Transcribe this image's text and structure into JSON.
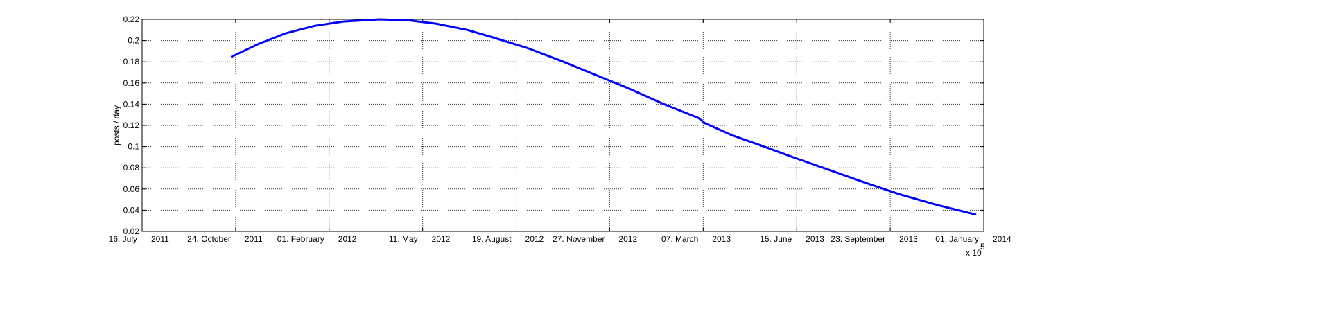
{
  "chart_data": {
    "type": "line",
    "title": "",
    "xlabel": "",
    "ylabel": "posts / day",
    "x_exponent_label": "x 10",
    "x_exponent_power": "5",
    "grid": true,
    "line_color": "#0000ff",
    "ylim": [
      0.02,
      0.22
    ],
    "yticks": [
      0.02,
      0.04,
      0.06,
      0.08,
      0.1,
      0.12,
      0.14,
      0.16,
      0.18,
      0.2,
      0.22
    ],
    "ytick_labels": [
      "0.02",
      "0.04",
      "0.06",
      "0.08",
      "0.1",
      "0.12",
      "0.14",
      "0.16",
      "0.18",
      "0.2",
      "0.22"
    ],
    "xlim": [
      "2011-07-16",
      "2014-01-01"
    ],
    "xticks": [
      "2011-07-16",
      "2011-10-24",
      "2012-02-01",
      "2012-05-11",
      "2012-08-19",
      "2012-11-27",
      "2013-03-07",
      "2013-06-15",
      "2013-09-23",
      "2014-01-01"
    ],
    "xtick_labels": [
      {
        "day": "16. July",
        "year": "2011"
      },
      {
        "day": "24. October",
        "year": "2011"
      },
      {
        "day": "01. February",
        "year": "2012"
      },
      {
        "day": "11. May",
        "year": "2012"
      },
      {
        "day": "19. August",
        "year": "2012"
      },
      {
        "day": "27. November",
        "year": "2012"
      },
      {
        "day": "07. March",
        "year": "2013"
      },
      {
        "day": "15. June",
        "year": "2013"
      },
      {
        "day": "23. September",
        "year": "2013"
      },
      {
        "day": "01. January",
        "year": "2014"
      }
    ],
    "series": [
      {
        "x": [
          "2011-10-20",
          "2011-11-18",
          "2011-12-17",
          "2012-01-17",
          "2012-02-16",
          "2012-03-26",
          "2012-04-27",
          "2012-05-25",
          "2012-06-28",
          "2012-07-25",
          "2012-08-31",
          "2012-10-06",
          "2012-11-11",
          "2012-12-17",
          "2013-01-24",
          "2013-03-02",
          "2013-03-09",
          "2013-04-06",
          "2013-05-11",
          "2013-06-14",
          "2013-07-23",
          "2013-08-27",
          "2013-10-03",
          "2013-11-12",
          "2013-12-23"
        ],
        "y": [
          0.185,
          0.197,
          0.207,
          0.214,
          0.218,
          0.22,
          0.219,
          0.216,
          0.21,
          0.203,
          0.193,
          0.181,
          0.168,
          0.155,
          0.14,
          0.127,
          0.122,
          0.111,
          0.1,
          0.089,
          0.077,
          0.066,
          0.055,
          0.045,
          0.036
        ]
      }
    ]
  }
}
